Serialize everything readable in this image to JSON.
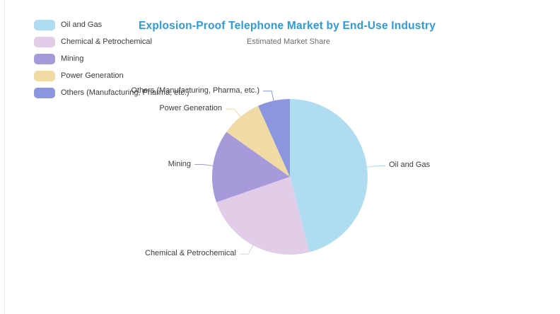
{
  "header": {
    "title": "Explosion-Proof Telephone Market by End-Use Industry",
    "subtitle": "Estimated Market Share",
    "title_color": "#2E9BD8",
    "subtitle_color": "#6e6e6e"
  },
  "chart_data": {
    "type": "pie",
    "title": "Explosion-Proof Telephone Market by End-Use Industry",
    "subtitle": "Estimated Market Share",
    "legend_position": "top-left",
    "labels": "outside-with-leader-lines",
    "categories": [
      "Oil and Gas",
      "Chemical & Petrochemical",
      "Mining",
      "Power Generation",
      "Others (Manufacturing, Pharma, etc.)"
    ],
    "values": [
      46.0,
      23.7,
      15.1,
      8.5,
      6.7
    ],
    "slices": [
      {
        "label": "Oil and Gas",
        "value": 46.0,
        "color": "#AFDCF0"
      },
      {
        "label": "Chemical & Petrochemical",
        "value": 23.7,
        "color": "#E2CDE9"
      },
      {
        "label": "Mining",
        "value": 15.1,
        "color": "#A79ADB"
      },
      {
        "label": "Power Generation",
        "value": 8.5,
        "color": "#F0DBA5"
      },
      {
        "label": "Others (Manufacturing, Pharma, etc.)",
        "value": 6.7,
        "color": "#8C96DF"
      }
    ]
  }
}
